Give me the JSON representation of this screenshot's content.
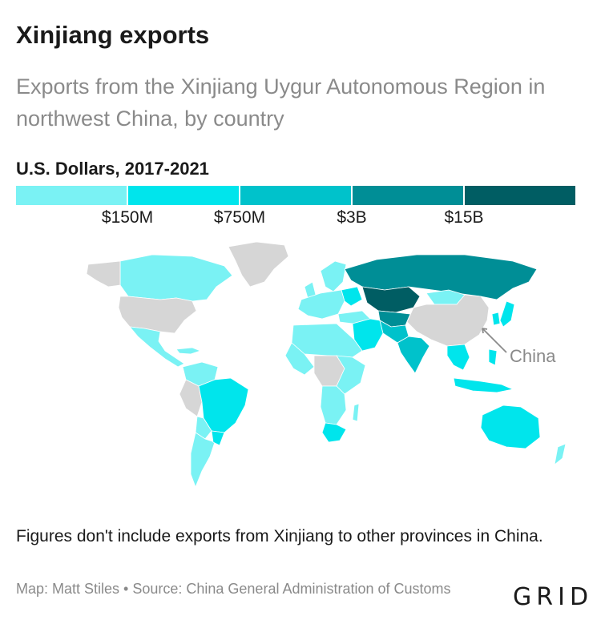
{
  "header": {
    "title": "Xinjiang exports",
    "subtitle": "Exports from the Xinjiang Uygur Autonomous Region in northwest China, by country"
  },
  "legend": {
    "title": "U.S. Dollars, 2017-2021",
    "colors": [
      "#7af2f4",
      "#00e5ec",
      "#00c2cb",
      "#008e96",
      "#005d63"
    ],
    "ticks": [
      "$150M",
      "$750M",
      "$3B",
      "$15B"
    ]
  },
  "map": {
    "annotation": "China",
    "no_data_color": "#d6d6d6"
  },
  "footer": {
    "note": "Figures don't include exports from Xinjiang to other provinces in China.",
    "source": "Map: Matt Stiles • Source: China General Administration of Customs",
    "logo": "GRID"
  }
}
